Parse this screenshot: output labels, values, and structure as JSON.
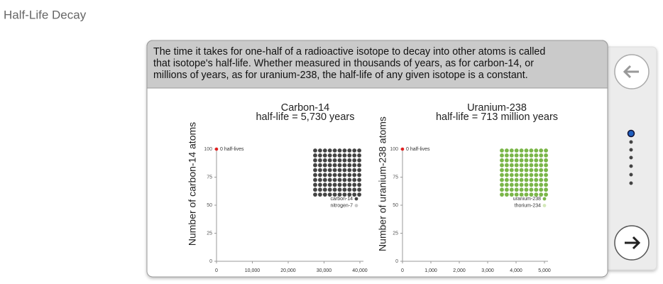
{
  "header": {
    "title": "Half-Life Decay"
  },
  "description": [
    "The time it takes for one-half of a radioactive isotope to decay into other atoms is called",
    "that isotope's half-life. Whether measured in thousands of years, as for carbon-14, or",
    "millions of years, as for uranium-238, the half-life of any given isotope is a constant."
  ],
  "chart_data": [
    {
      "type": "scatter",
      "title": "Carbon-14",
      "subtitle": "half-life = 5,730 years",
      "y_label": "Number of carbon-14 atoms",
      "x": [
        0
      ],
      "y": [
        100
      ],
      "point_labels": [
        "0 half-lives"
      ],
      "color": "#e02020",
      "xlim": [
        0,
        40000
      ],
      "xticks": [
        0,
        {
          "value": 10000,
          "label": "10,000"
        },
        {
          "value": 20000,
          "label": "20,000"
        },
        {
          "value": 30000,
          "label": "30,000"
        },
        {
          "value": 40000,
          "label": "40,000"
        }
      ],
      "ylim": [
        0,
        100
      ],
      "yticks": [
        0,
        25,
        50,
        75,
        100
      ],
      "series": [
        {
          "name": "carbon-14",
          "color": "#444444",
          "count": 100
        },
        {
          "name": "nitrogen-7",
          "color": "#c8c8c8",
          "count": 0
        }
      ]
    },
    {
      "type": "scatter",
      "title": "Uranium-238",
      "subtitle": "half-life = 713 million years",
      "y_label": "Number of uranium-238 atoms",
      "x": [
        0
      ],
      "y": [
        100
      ],
      "point_labels": [
        "0 half-lives"
      ],
      "color": "#e02020",
      "xlim": [
        0,
        5000
      ],
      "xticks": [
        0,
        {
          "value": 1000,
          "label": "1,000"
        },
        {
          "value": 2000,
          "label": "2,000"
        },
        {
          "value": 3000,
          "label": "3,000"
        },
        {
          "value": 4000,
          "label": "4,000"
        },
        {
          "value": 5000,
          "label": "5,000"
        }
      ],
      "ylim": [
        0,
        100
      ],
      "yticks": [
        0,
        25,
        50,
        75,
        100
      ],
      "series": [
        {
          "name": "uranium-238",
          "color": "#7ab648",
          "count": 100
        },
        {
          "name": "thorium-234",
          "color": "#d3e8b8",
          "count": 0
        }
      ]
    }
  ]
}
